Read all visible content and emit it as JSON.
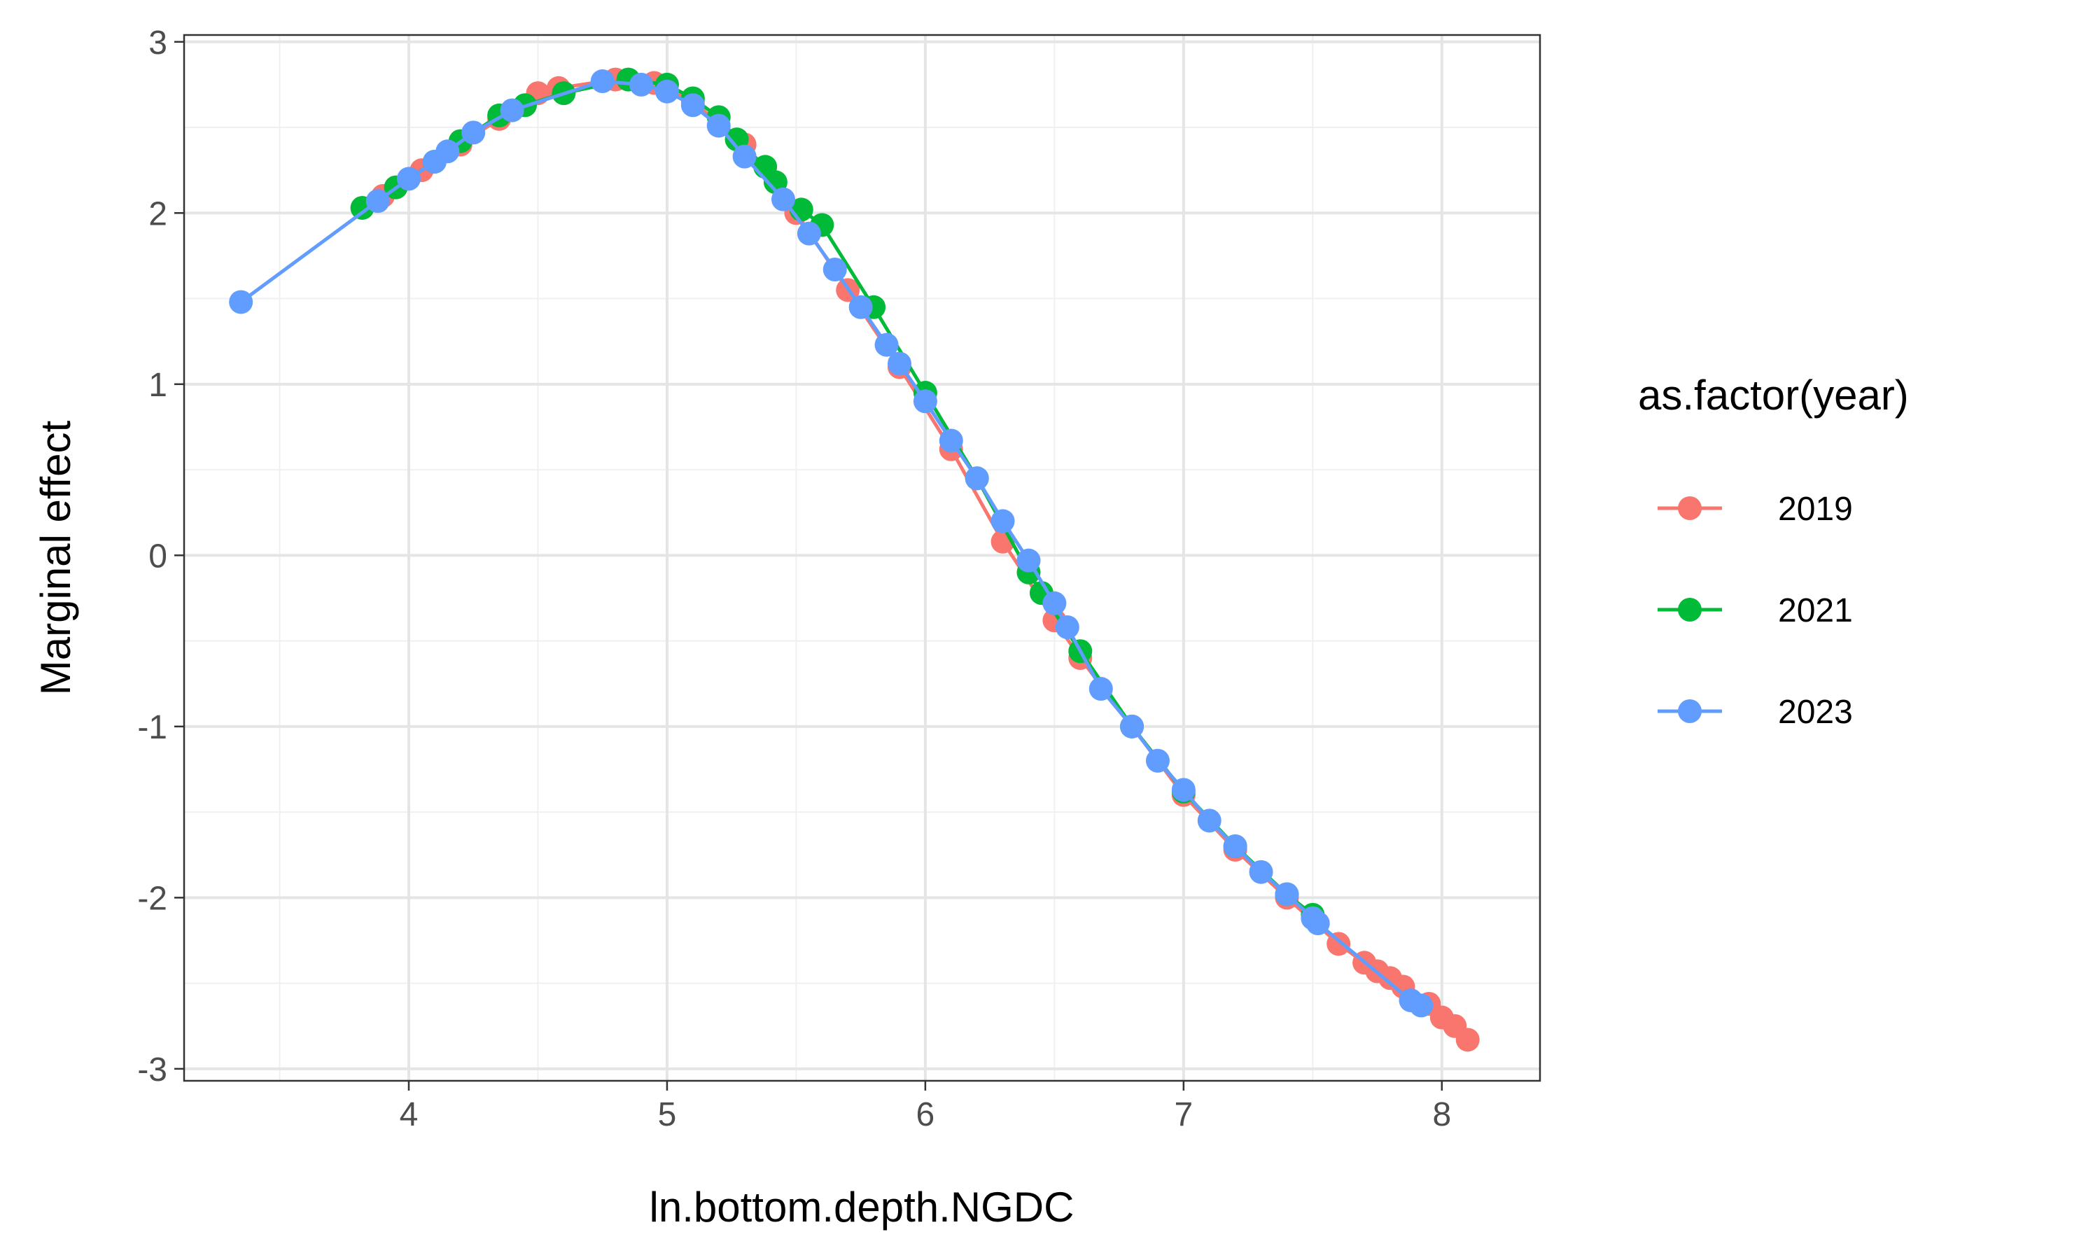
{
  "chart_data": {
    "type": "line",
    "title": "",
    "xlabel": "ln.bottom.depth.NGDC",
    "ylabel": "Marginal effect",
    "xlim": [
      3.13,
      8.38
    ],
    "ylim": [
      -3.07,
      3.04
    ],
    "x_ticks": [
      4,
      5,
      6,
      7,
      8
    ],
    "y_ticks": [
      -3,
      -2,
      -1,
      0,
      1,
      2,
      3
    ],
    "x_tick_labels": [
      "4",
      "5",
      "6",
      "7",
      "8"
    ],
    "y_tick_labels": [
      "-3",
      "-2",
      "-1",
      "0",
      "1",
      "2",
      "3"
    ],
    "grid": true,
    "legend": {
      "title": "as.factor(year)",
      "position": "right"
    },
    "series": [
      {
        "name": "2019",
        "color": "#F8766D",
        "x": [
          3.9,
          4.05,
          4.2,
          4.35,
          4.5,
          4.58,
          4.8,
          4.95,
          5.1,
          5.3,
          5.5,
          5.7,
          5.9,
          6.1,
          6.3,
          6.5,
          6.6,
          6.8,
          7.0,
          7.2,
          7.4,
          7.6,
          7.7,
          7.75,
          7.8,
          7.85,
          7.95,
          8.0,
          8.05,
          8.1
        ],
        "y": [
          2.1,
          2.25,
          2.4,
          2.55,
          2.7,
          2.73,
          2.78,
          2.76,
          2.65,
          2.4,
          2.0,
          1.55,
          1.1,
          0.62,
          0.08,
          -0.38,
          -0.6,
          -1.0,
          -1.4,
          -1.72,
          -2.0,
          -2.27,
          -2.38,
          -2.43,
          -2.47,
          -2.52,
          -2.62,
          -2.7,
          -2.75,
          -2.83
        ]
      },
      {
        "name": "2021",
        "color": "#00BA38",
        "x": [
          3.82,
          3.95,
          4.1,
          4.2,
          4.35,
          4.45,
          4.6,
          4.85,
          5.0,
          5.1,
          5.2,
          5.27,
          5.38,
          5.42,
          5.52,
          5.6,
          5.8,
          6.0,
          6.2,
          6.4,
          6.45,
          6.6,
          6.8,
          7.0,
          7.2,
          7.4,
          7.5
        ],
        "y": [
          2.03,
          2.15,
          2.3,
          2.42,
          2.57,
          2.63,
          2.7,
          2.78,
          2.75,
          2.67,
          2.56,
          2.43,
          2.27,
          2.18,
          2.02,
          1.93,
          1.45,
          0.95,
          0.45,
          -0.1,
          -0.22,
          -0.56,
          -1.0,
          -1.38,
          -1.7,
          -1.98,
          -2.1
        ]
      },
      {
        "name": "2023",
        "color": "#619CFF",
        "x": [
          3.35,
          3.88,
          4.0,
          4.1,
          4.15,
          4.25,
          4.4,
          4.75,
          4.9,
          5.0,
          5.1,
          5.2,
          5.3,
          5.45,
          5.55,
          5.65,
          5.75,
          5.85,
          5.9,
          6.0,
          6.1,
          6.2,
          6.3,
          6.4,
          6.5,
          6.55,
          6.68,
          6.8,
          6.9,
          7.0,
          7.1,
          7.2,
          7.3,
          7.4,
          7.5,
          7.52,
          7.88,
          7.92
        ],
        "y": [
          1.48,
          2.07,
          2.2,
          2.3,
          2.36,
          2.47,
          2.6,
          2.77,
          2.75,
          2.71,
          2.63,
          2.51,
          2.33,
          2.08,
          1.88,
          1.67,
          1.45,
          1.23,
          1.12,
          0.9,
          0.67,
          0.45,
          0.2,
          -0.03,
          -0.28,
          -0.42,
          -0.78,
          -1.0,
          -1.2,
          -1.37,
          -1.55,
          -1.7,
          -1.85,
          -1.98,
          -2.12,
          -2.15,
          -2.6,
          -2.63
        ]
      }
    ]
  }
}
